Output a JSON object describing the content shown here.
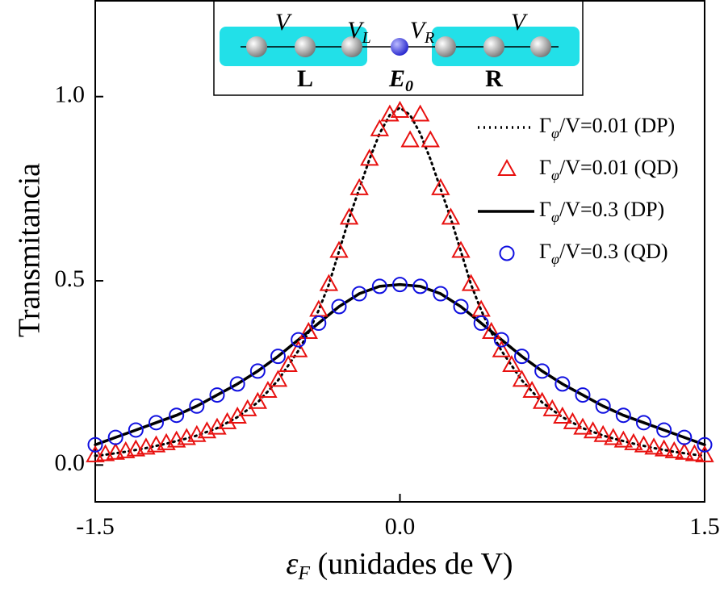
{
  "chart_data": {
    "type": "line",
    "y_label": "Transmitancia",
    "x_label": "εF (unidades de V)",
    "xlim": [
      -1.5,
      1.5
    ],
    "ylim": [
      -0.1,
      1.26
    ],
    "xticks": [
      {
        "value": -1.5,
        "label": "-1.5"
      },
      {
        "value": 0,
        "label": "0.0"
      },
      {
        "value": 1.5,
        "label": "1.5"
      }
    ],
    "yticks": [
      {
        "value": 0,
        "label": "0.0"
      },
      {
        "value": 0.5,
        "label": "0.5"
      },
      {
        "value": 1,
        "label": "1.0"
      }
    ],
    "grid": false,
    "legend": "upper right",
    "series": [
      {
        "name": "Γφ/V=0.01 (DP)",
        "color": "#000000",
        "style": "dotted",
        "marker": "none",
        "x": [
          -1.5,
          -1.45,
          -1.4,
          -1.35,
          -1.3,
          -1.25,
          -1.2,
          -1.15,
          -1.1,
          -1.05,
          -1,
          -0.95,
          -0.9,
          -0.85,
          -0.8,
          -0.75,
          -0.7,
          -0.65,
          -0.6,
          -0.55,
          -0.5,
          -0.45,
          -0.4,
          -0.35,
          -0.3,
          -0.25,
          -0.2,
          -0.15,
          -0.1,
          -0.05,
          0,
          0.05,
          0.1,
          0.15,
          0.2,
          0.25,
          0.3,
          0.35,
          0.4,
          0.45,
          0.5,
          0.55,
          0.6,
          0.65,
          0.7,
          0.75,
          0.8,
          0.85,
          0.9,
          0.95,
          1,
          1.05,
          1.1,
          1.15,
          1.2,
          1.25,
          1.3,
          1.35,
          1.4,
          1.45,
          1.5
        ],
        "values": [
          0.025,
          0.028,
          0.032,
          0.036,
          0.041,
          0.046,
          0.052,
          0.058,
          0.065,
          0.072,
          0.08,
          0.09,
          0.1,
          0.115,
          0.13,
          0.15,
          0.17,
          0.2,
          0.23,
          0.27,
          0.31,
          0.36,
          0.42,
          0.49,
          0.58,
          0.67,
          0.75,
          0.83,
          0.9,
          0.95,
          0.97,
          0.95,
          0.9,
          0.83,
          0.75,
          0.67,
          0.58,
          0.49,
          0.42,
          0.36,
          0.31,
          0.27,
          0.23,
          0.2,
          0.17,
          0.15,
          0.13,
          0.115,
          0.1,
          0.09,
          0.08,
          0.072,
          0.065,
          0.058,
          0.052,
          0.046,
          0.041,
          0.036,
          0.032,
          0.028,
          0.025
        ]
      },
      {
        "name": "Γφ/V=0.01 (QD)",
        "color": "#e8100f",
        "style": "none",
        "marker": "triangle",
        "x": [
          -1.5,
          -1.45,
          -1.4,
          -1.35,
          -1.3,
          -1.25,
          -1.2,
          -1.15,
          -1.1,
          -1.05,
          -1,
          -0.95,
          -0.9,
          -0.85,
          -0.8,
          -0.75,
          -0.7,
          -0.65,
          -0.6,
          -0.55,
          -0.5,
          -0.45,
          -0.4,
          -0.35,
          -0.3,
          -0.25,
          -0.2,
          -0.15,
          -0.1,
          -0.05,
          0,
          0.05,
          0.1,
          0.15,
          0.2,
          0.25,
          0.3,
          0.35,
          0.4,
          0.45,
          0.5,
          0.55,
          0.6,
          0.65,
          0.7,
          0.75,
          0.8,
          0.85,
          0.9,
          0.95,
          1,
          1.05,
          1.1,
          1.15,
          1.2,
          1.25,
          1.3,
          1.35,
          1.4,
          1.45,
          1.5
        ],
        "values": [
          0.025,
          0.028,
          0.032,
          0.036,
          0.041,
          0.046,
          0.052,
          0.058,
          0.065,
          0.072,
          0.08,
          0.09,
          0.1,
          0.115,
          0.13,
          0.15,
          0.17,
          0.2,
          0.23,
          0.27,
          0.31,
          0.36,
          0.42,
          0.49,
          0.58,
          0.67,
          0.75,
          0.83,
          0.91,
          0.95,
          0.96,
          0.88,
          0.95,
          0.88,
          0.75,
          0.67,
          0.58,
          0.49,
          0.42,
          0.36,
          0.31,
          0.27,
          0.23,
          0.2,
          0.17,
          0.15,
          0.13,
          0.115,
          0.1,
          0.09,
          0.08,
          0.072,
          0.065,
          0.058,
          0.052,
          0.046,
          0.041,
          0.036,
          0.032,
          0.028,
          0.025
        ]
      },
      {
        "name": "Γφ/V=0.3 (DP)",
        "color": "#000000",
        "style": "solid",
        "marker": "none",
        "x": [
          -1.5,
          -1.4,
          -1.3,
          -1.2,
          -1.1,
          -1,
          -0.9,
          -0.8,
          -0.7,
          -0.6,
          -0.5,
          -0.4,
          -0.3,
          -0.2,
          -0.1,
          0,
          0.1,
          0.2,
          0.3,
          0.4,
          0.5,
          0.6,
          0.7,
          0.8,
          0.9,
          1,
          1.1,
          1.2,
          1.3,
          1.4,
          1.5
        ],
        "values": [
          0.055,
          0.075,
          0.095,
          0.115,
          0.135,
          0.16,
          0.19,
          0.22,
          0.255,
          0.295,
          0.34,
          0.385,
          0.43,
          0.465,
          0.485,
          0.49,
          0.485,
          0.465,
          0.43,
          0.385,
          0.34,
          0.295,
          0.255,
          0.22,
          0.19,
          0.16,
          0.135,
          0.115,
          0.095,
          0.075,
          0.055
        ]
      },
      {
        "name": "Γφ/V=0.3 (QD)",
        "color": "#1010e0",
        "style": "none",
        "marker": "circle",
        "x": [
          -1.5,
          -1.4,
          -1.3,
          -1.2,
          -1.1,
          -1,
          -0.9,
          -0.8,
          -0.7,
          -0.6,
          -0.5,
          -0.4,
          -0.3,
          -0.2,
          -0.1,
          0,
          0.1,
          0.2,
          0.3,
          0.4,
          0.5,
          0.6,
          0.7,
          0.8,
          0.9,
          1,
          1.1,
          1.2,
          1.3,
          1.4,
          1.5
        ],
        "values": [
          0.055,
          0.075,
          0.095,
          0.115,
          0.135,
          0.16,
          0.19,
          0.22,
          0.255,
          0.295,
          0.34,
          0.385,
          0.43,
          0.465,
          0.485,
          0.49,
          0.485,
          0.465,
          0.43,
          0.385,
          0.34,
          0.295,
          0.255,
          0.22,
          0.19,
          0.16,
          0.135,
          0.115,
          0.095,
          0.075,
          0.055
        ]
      }
    ],
    "inset": {
      "labels": [
        "V",
        "VL",
        "VR",
        "V",
        "L",
        "E0",
        "R"
      ]
    }
  }
}
